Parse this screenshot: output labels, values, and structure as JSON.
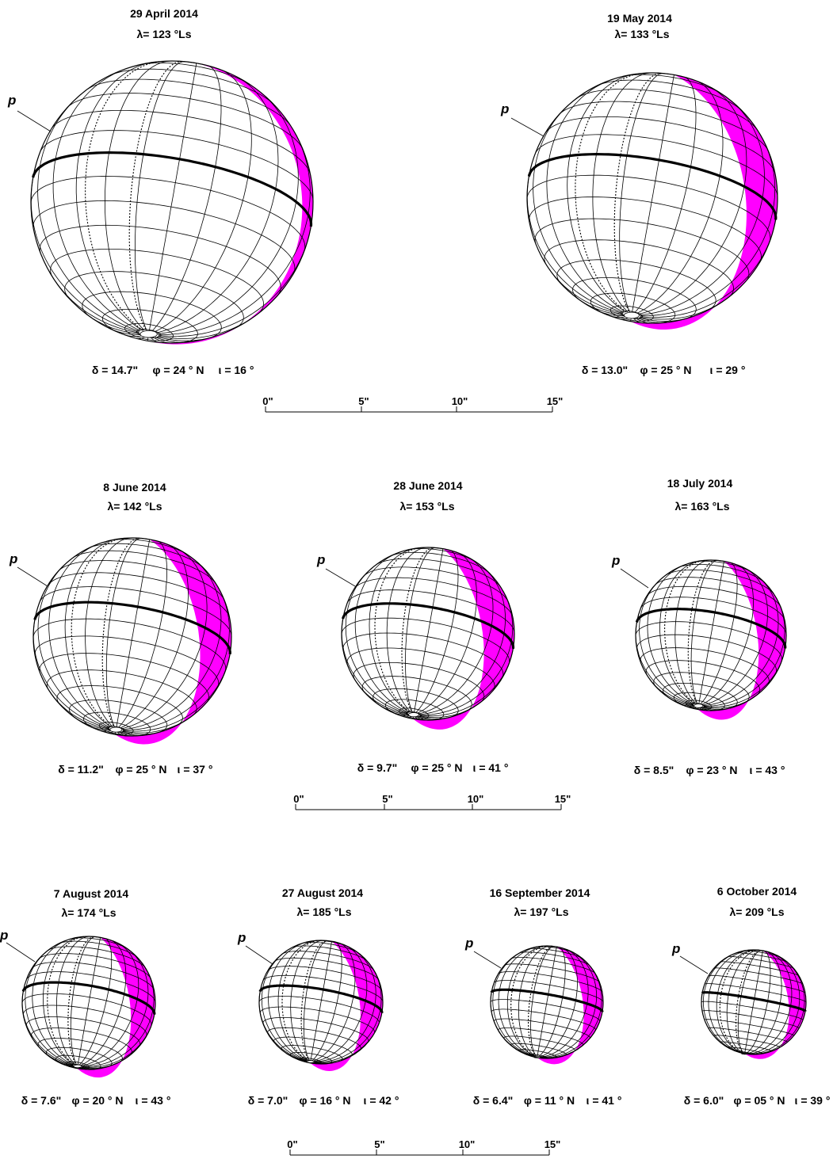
{
  "colors": {
    "phase": "#ff00ff",
    "ink": "#000000",
    "background": "#ffffff"
  },
  "pole_label": "p",
  "globes": [
    {
      "date": "29 April 2014",
      "ls": "λ= 123 °Ls",
      "diameter": "δ = 14.7\"",
      "latitude": "φ = 24 ° N",
      "phase_angle": "ι = 16 °"
    },
    {
      "date": "19 May 2014",
      "ls": "λ= 133 °Ls",
      "diameter": "δ = 13.0\"",
      "latitude": "φ = 25 ° N",
      "phase_angle": "ι = 29 °"
    },
    {
      "date": "8 June 2014",
      "ls": "λ= 142 °Ls",
      "diameter": "δ = 11.2\"",
      "latitude": "φ = 25 ° N",
      "phase_angle": "ι = 37 °"
    },
    {
      "date": "28 June 2014",
      "ls": "λ= 153 °Ls",
      "diameter": "δ = 9.7\"",
      "latitude": "φ = 25 ° N",
      "phase_angle": "ι = 41 °"
    },
    {
      "date": "18 July 2014",
      "ls": "λ= 163 °Ls",
      "diameter": "δ = 8.5\"",
      "latitude": "φ = 23 ° N",
      "phase_angle": "ι = 43 °"
    },
    {
      "date": "7 August 2014",
      "ls": "λ= 174 °Ls",
      "diameter": "δ = 7.6\"",
      "latitude": "φ = 20 ° N",
      "phase_angle": "ι = 43 °"
    },
    {
      "date": "27 August 2014",
      "ls": "λ= 185 °Ls",
      "diameter": "δ = 7.0\"",
      "latitude": "φ = 16 ° N",
      "phase_angle": "ι = 42 °"
    },
    {
      "date": "16 September 2014",
      "ls": "λ= 197 °Ls",
      "diameter": "δ = 6.4\"",
      "latitude": "φ = 11 ° N",
      "phase_angle": "ι = 41 °"
    },
    {
      "date": "6 October 2014",
      "ls": "λ= 209 °Ls",
      "diameter": "δ = 6.0\"",
      "latitude": "φ = 05 ° N",
      "phase_angle": "ι = 39 °"
    }
  ],
  "scale_bars": [
    {
      "ticks": [
        "0\"",
        "5\"",
        "10\"",
        "15\""
      ]
    },
    {
      "ticks": [
        "0\"",
        "5\"",
        "10\"",
        "15\""
      ]
    },
    {
      "ticks": [
        "0\"",
        "5\"",
        "10\"",
        "15\""
      ]
    }
  ]
}
